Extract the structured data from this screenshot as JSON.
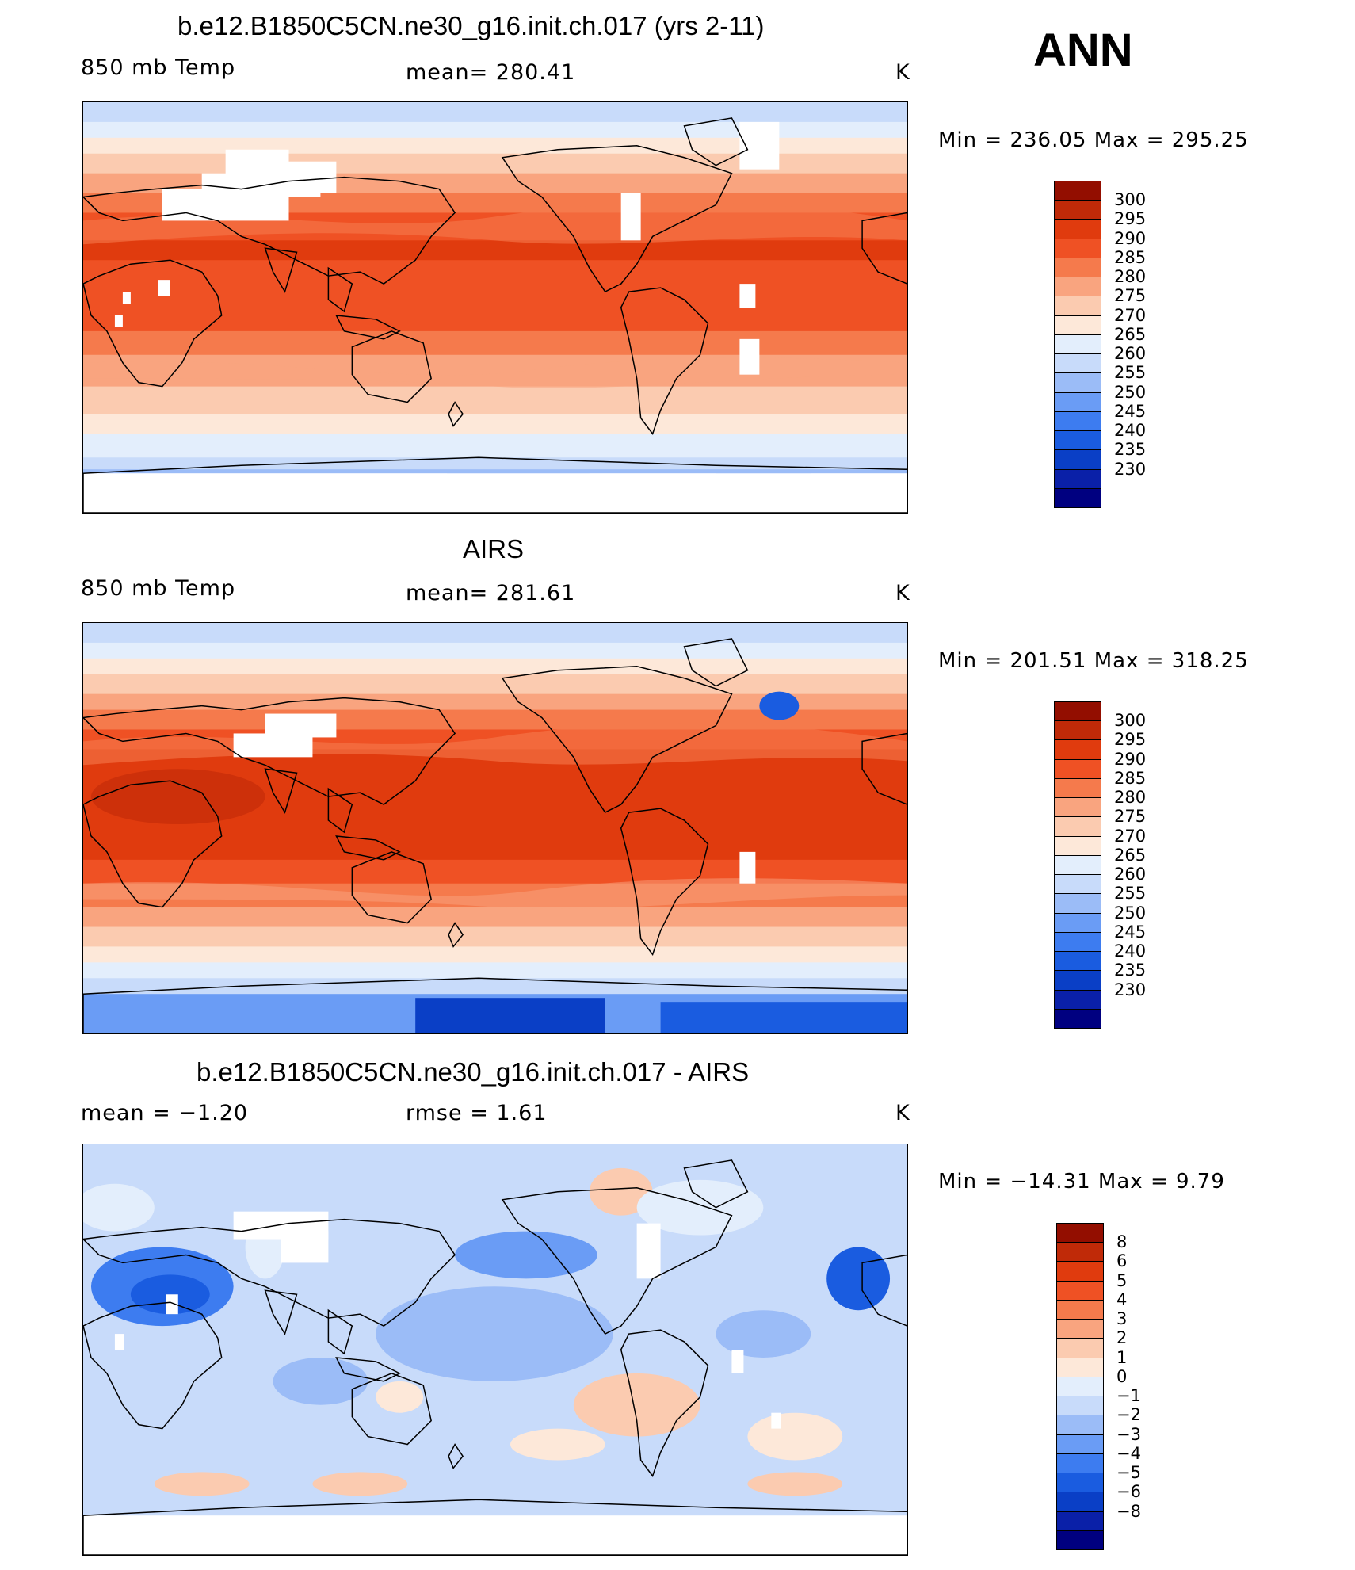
{
  "season": "ANN",
  "colors": {
    "temp_scale": [
      "#000080",
      "#0a20a8",
      "#0a3fc6",
      "#1a5ce0",
      "#3d7cf0",
      "#6a9cf5",
      "#9bbcf7",
      "#c8dbfa",
      "#e3eefc",
      "#fde8d9",
      "#fbcbb0",
      "#f9a47f",
      "#f57a4c",
      "#ef5124",
      "#e03b0e",
      "#c02a08",
      "#930e00"
    ],
    "diff_scale": [
      "#000080",
      "#0a20a8",
      "#0a3fc6",
      "#1a5ce0",
      "#3d7cf0",
      "#6a9cf5",
      "#9bbcf7",
      "#c8dbfa",
      "#e3eefc",
      "#fde8d9",
      "#fbcbb0",
      "#f9a47f",
      "#f57a4c",
      "#ef5124",
      "#e03b0e",
      "#c02a08",
      "#930e00"
    ],
    "land_outline": "#000000",
    "missing": "#ffffff"
  },
  "panels": [
    {
      "id": "model",
      "title": "b.e12.B1850C5CN.ne30_g16.init.ch.017 (yrs 2-11)",
      "left_label": "850 mb Temp",
      "center_label": "mean=  280.41",
      "right_label": "K",
      "minmax": "Min  =  236.05  Max  =  295.25",
      "colorbar_labels": [
        "300",
        "295",
        "290",
        "285",
        "280",
        "275",
        "270",
        "265",
        "260",
        "255",
        "250",
        "245",
        "240",
        "235",
        "230"
      ]
    },
    {
      "id": "obs",
      "title": "AIRS",
      "left_label": "850 mb Temp",
      "center_label": "mean=  281.61",
      "right_label": "K",
      "minmax": "Min  =  201.51  Max  =  318.25",
      "colorbar_labels": [
        "300",
        "295",
        "290",
        "285",
        "280",
        "275",
        "270",
        "265",
        "260",
        "255",
        "250",
        "245",
        "240",
        "235",
        "230"
      ]
    },
    {
      "id": "diff",
      "title": "b.e12.B1850C5CN.ne30_g16.init.ch.017 - AIRS",
      "left_label": "mean  =    −1.20",
      "center_label": "rmse  =     1.61",
      "right_label": "K",
      "minmax": "Min  =  −14.31  Max  =     9.79",
      "colorbar_labels": [
        "8",
        "6",
        "5",
        "4",
        "3",
        "2",
        "1",
        "0",
        "−1",
        "−2",
        "−3",
        "−4",
        "−5",
        "−6",
        "−8"
      ]
    }
  ]
}
